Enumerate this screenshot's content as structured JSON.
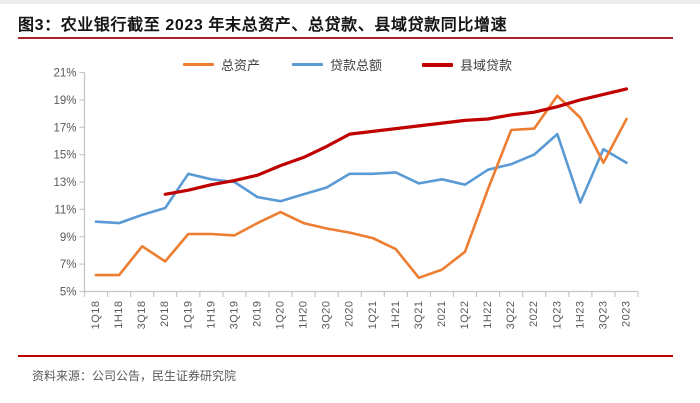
{
  "title": "图3：农业银行截至 2023 年末总资产、总贷款、县域贷款同比增速",
  "source_note": "资料来源：公司公告，民生证券研究院",
  "colors": {
    "rule_top": "#A62429",
    "rule_bottom": "#C00000",
    "axis_line": "#C6C6C6",
    "tick_text": "#595959"
  },
  "chart_data": {
    "type": "line",
    "title": "农业银行截至 2023 年末总资产、总贷款、县域贷款同比增速",
    "xlabel": "",
    "ylabel": "",
    "ylim": [
      5,
      21
    ],
    "ytick_step": 2,
    "ytick_labels": [
      "5%",
      "7%",
      "9%",
      "11%",
      "13%",
      "15%",
      "17%",
      "19%",
      "21%"
    ],
    "grid": false,
    "legend_position": "top",
    "categories": [
      "1Q18",
      "1H18",
      "3Q18",
      "2018",
      "1Q19",
      "1H19",
      "3Q19",
      "2019",
      "1Q20",
      "1H20",
      "3Q20",
      "2020",
      "1Q21",
      "1H21",
      "3Q21",
      "2021",
      "1Q22",
      "1H22",
      "3Q22",
      "2022",
      "1Q23",
      "1H23",
      "3Q23",
      "2023"
    ],
    "series": [
      {
        "key": "total-assets",
        "name": "总资产",
        "color": "#ED7D31",
        "values": [
          6.2,
          6.2,
          8.3,
          7.2,
          9.2,
          9.2,
          9.1,
          10.0,
          10.8,
          10.0,
          9.6,
          9.3,
          8.9,
          8.1,
          6.0,
          6.6,
          7.9,
          12.5,
          16.8,
          16.9,
          19.3,
          17.7,
          14.4,
          17.6
        ]
      },
      {
        "key": "total-loans",
        "name": "贷款总额",
        "color": "#5B9BD5",
        "values": [
          10.1,
          10.0,
          10.6,
          11.1,
          13.6,
          13.2,
          13.0,
          11.9,
          11.6,
          12.1,
          12.6,
          13.6,
          13.6,
          13.7,
          12.9,
          13.2,
          12.8,
          13.9,
          14.3,
          15.0,
          16.5,
          11.5,
          15.4,
          14.4
        ]
      },
      {
        "key": "county-loans",
        "name": "县域贷款",
        "color": "#C00000",
        "values": [
          null,
          null,
          null,
          12.1,
          12.4,
          12.8,
          13.1,
          13.5,
          14.2,
          14.8,
          15.6,
          16.5,
          16.7,
          16.9,
          17.1,
          17.3,
          17.5,
          17.6,
          17.9,
          18.1,
          18.5,
          19.0,
          19.4,
          19.8
        ]
      }
    ]
  }
}
